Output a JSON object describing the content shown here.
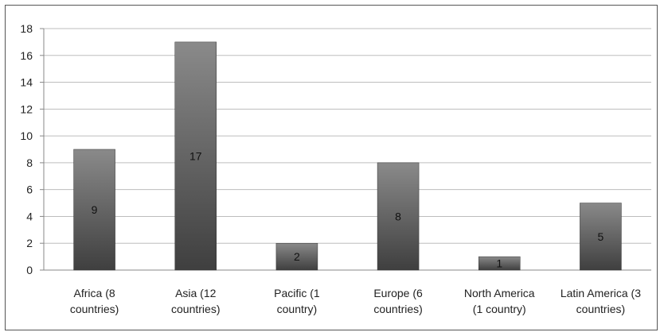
{
  "chart_data": {
    "type": "bar",
    "title": "",
    "xlabel": "",
    "ylabel": "",
    "categories": [
      [
        "Africa (8",
        "countries)"
      ],
      [
        "Asia (12",
        "countries)"
      ],
      [
        "Pacific (1",
        "country)"
      ],
      [
        "Europe (6",
        "countries)"
      ],
      [
        "North America",
        "(1 country)"
      ],
      [
        "Latin America (3",
        "countries)"
      ]
    ],
    "values": [
      9,
      17,
      2,
      8,
      1,
      5
    ],
    "data_labels": [
      "9",
      "17",
      "2",
      "8",
      "1",
      "5"
    ],
    "ylim": [
      0,
      18
    ],
    "yticks": [
      0,
      2,
      4,
      6,
      8,
      10,
      12,
      14,
      16,
      18
    ],
    "grid": true,
    "legend": "none",
    "colors": {
      "bar_top": "#8a8a8a",
      "bar_bottom": "#3f3f3f",
      "grid": "#bdbdbd",
      "axis": "#888888"
    }
  }
}
